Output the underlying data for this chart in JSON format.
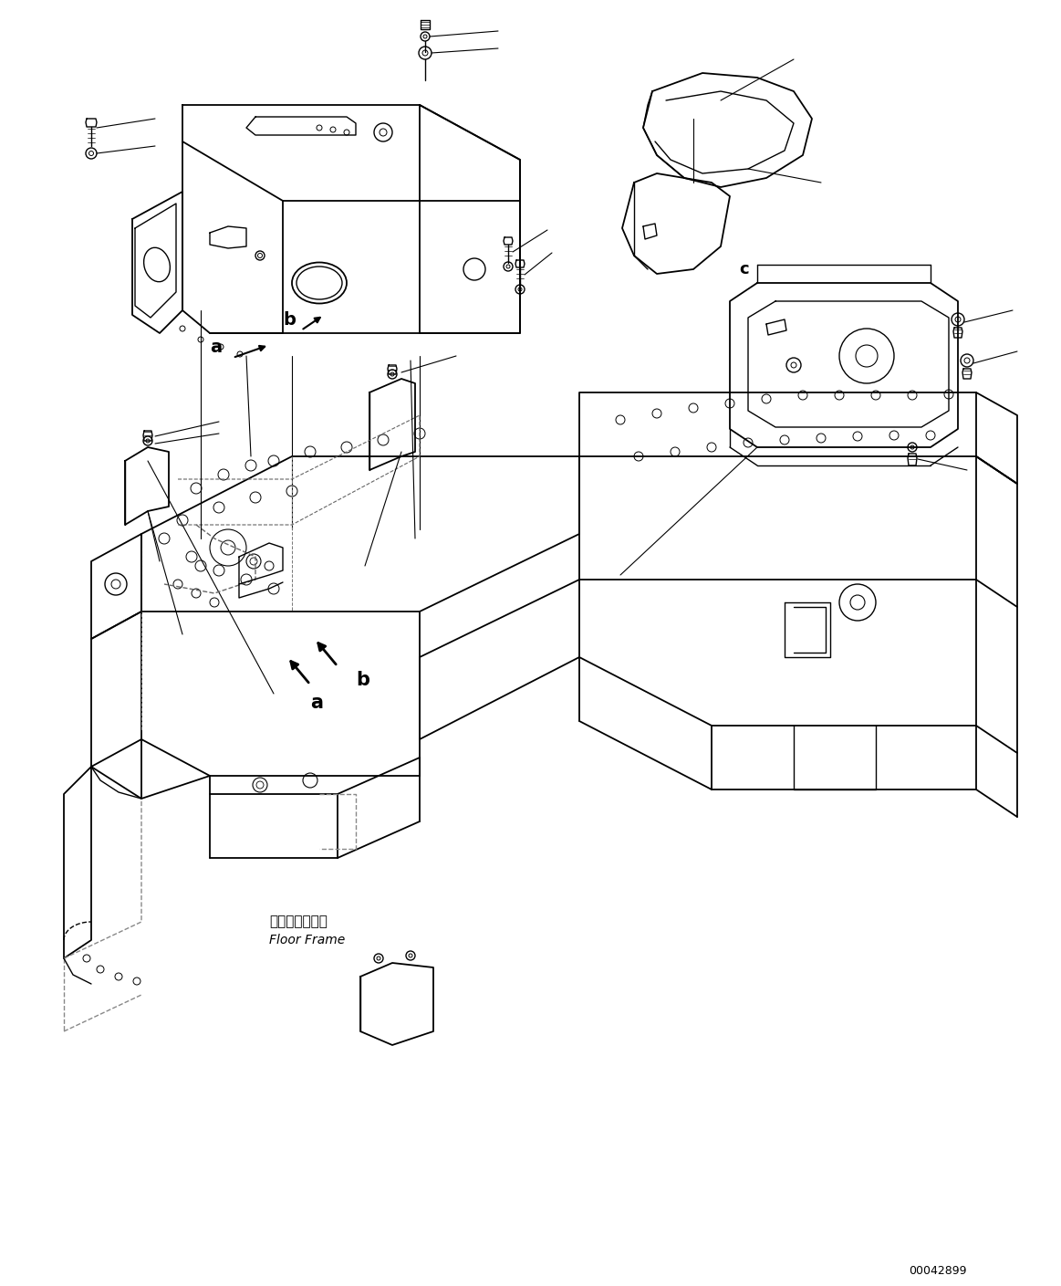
{
  "background_color": "#ffffff",
  "line_color": "#000000",
  "diagram_id": "00042899",
  "figsize": [
    11.63,
    14.09
  ],
  "dpi": 100,
  "labels": {
    "floor_frame_jp": "フロアフレーム",
    "floor_frame_en": "Floor Frame",
    "a": "a",
    "b": "b",
    "c": "c"
  }
}
